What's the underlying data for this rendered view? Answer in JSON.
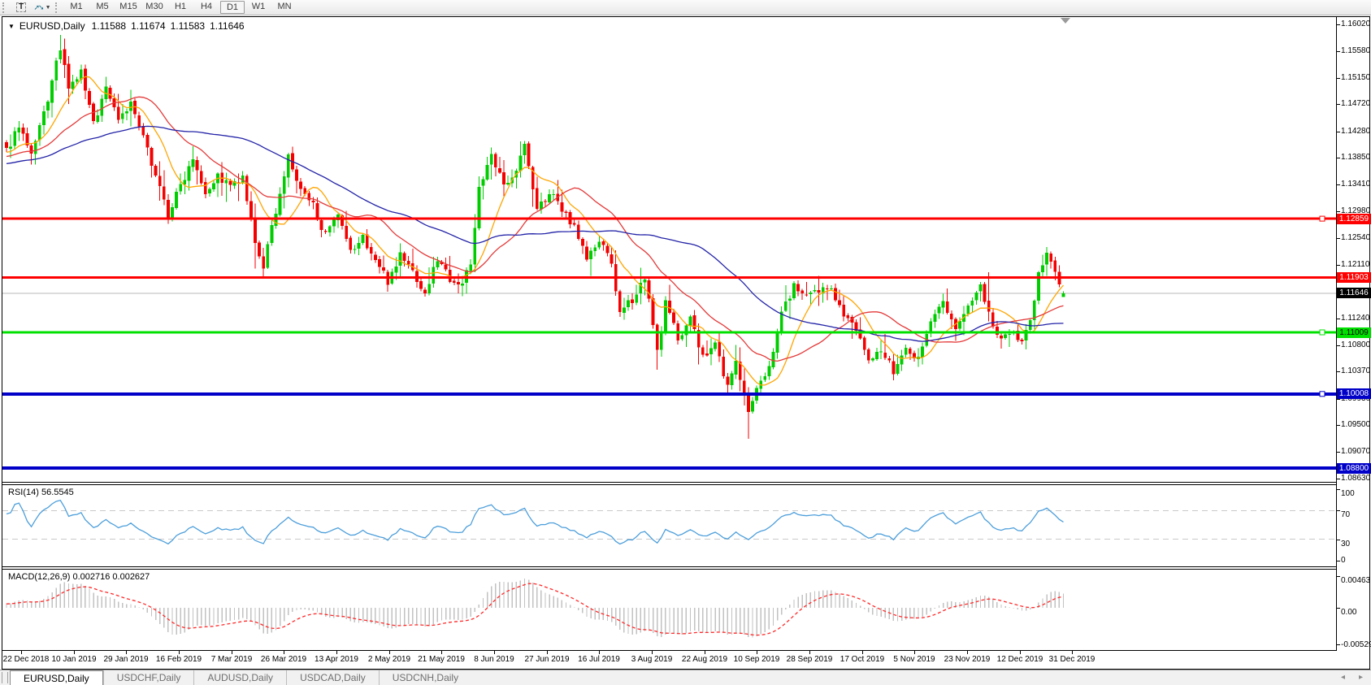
{
  "toolbar": {
    "tools": [
      {
        "name": "text-tool",
        "glyph": "T"
      },
      {
        "name": "arrows-tool",
        "caret": "▼"
      }
    ],
    "timeframes": [
      {
        "label": "M1",
        "active": false
      },
      {
        "label": "M5",
        "active": false
      },
      {
        "label": "M15",
        "active": false
      },
      {
        "label": "M30",
        "active": false
      },
      {
        "label": "H1",
        "active": false
      },
      {
        "label": "H4",
        "active": false
      },
      {
        "label": "D1",
        "active": true
      },
      {
        "label": "W1",
        "active": false
      },
      {
        "label": "MN",
        "active": false
      }
    ]
  },
  "chart": {
    "title": {
      "collapse_icon": "▼",
      "symbol": "EURUSD,Daily",
      "open": "1.11588",
      "high": "1.11674",
      "low": "1.11583",
      "close": "1.11646"
    }
  },
  "chart_data": {
    "type": "candlestick",
    "symbol": "EURUSD",
    "timeframe": "Daily",
    "candle_colors": {
      "up": "#00CD00",
      "down": "#F40000"
    },
    "price_axis": {
      "top_tick": 1.1602,
      "top_tick_y": 30,
      "bottom_tick": 1.0863,
      "bottom_tick_y": 589,
      "ticks": [
        "1.16020",
        "1.15580",
        "1.15150",
        "1.14720",
        "1.14280",
        "1.13850",
        "1.13410",
        "1.12980",
        "1.12540",
        "1.12110",
        "1.11240",
        "1.10800",
        "1.10370",
        "1.09930",
        "1.09500",
        "1.09070",
        "1.08630"
      ]
    },
    "x_axis": {
      "labels": [
        "22 Dec 2018",
        "10 Jan 2019",
        "29 Jan 2019",
        "16 Feb 2019",
        "7 Mar 2019",
        "26 Mar 2019",
        "13 Apr 2019",
        "2 May 2019",
        "21 May 2019",
        "8 Jun 2019",
        "27 Jun 2019",
        "16 Jul 2019",
        "3 Aug 2019",
        "22 Aug 2019",
        "10 Sep 2019",
        "28 Sep 2019",
        "17 Oct 2019",
        "5 Nov 2019",
        "23 Nov 2019",
        "12 Dec 2019",
        "31 Dec 2019"
      ],
      "total_candles": 256
    },
    "close_anchors": [
      [
        0,
        1.1395
      ],
      [
        3,
        1.144
      ],
      [
        6,
        1.1385
      ],
      [
        10,
        1.148
      ],
      [
        13,
        1.1565
      ],
      [
        15,
        1.1495
      ],
      [
        18,
        1.1525
      ],
      [
        21,
        1.144
      ],
      [
        24,
        1.15
      ],
      [
        27,
        1.145
      ],
      [
        30,
        1.1472
      ],
      [
        33,
        1.1415
      ],
      [
        36,
        1.136
      ],
      [
        39,
        1.1292
      ],
      [
        42,
        1.134
      ],
      [
        45,
        1.1388
      ],
      [
        48,
        1.133
      ],
      [
        51,
        1.1355
      ],
      [
        54,
        1.1338
      ],
      [
        57,
        1.135
      ],
      [
        60,
        1.1242
      ],
      [
        62,
        1.1208
      ],
      [
        65,
        1.13
      ],
      [
        68,
        1.1385
      ],
      [
        71,
        1.133
      ],
      [
        74,
        1.1308
      ],
      [
        77,
        1.1258
      ],
      [
        80,
        1.1288
      ],
      [
        83,
        1.123
      ],
      [
        86,
        1.1255
      ],
      [
        89,
        1.1218
      ],
      [
        92,
        1.1185
      ],
      [
        95,
        1.1228
      ],
      [
        98,
        1.12
      ],
      [
        101,
        1.1162
      ],
      [
        104,
        1.1222
      ],
      [
        107,
        1.119
      ],
      [
        110,
        1.118
      ],
      [
        112,
        1.1212
      ],
      [
        114,
        1.1338
      ],
      [
        117,
        1.1385
      ],
      [
        120,
        1.134
      ],
      [
        123,
        1.1368
      ],
      [
        125,
        1.1405
      ],
      [
        128,
        1.13
      ],
      [
        131,
        1.1328
      ],
      [
        134,
        1.13
      ],
      [
        137,
        1.1275
      ],
      [
        140,
        1.1222
      ],
      [
        143,
        1.1248
      ],
      [
        146,
        1.1215
      ],
      [
        148,
        1.1128
      ],
      [
        151,
        1.1155
      ],
      [
        154,
        1.1192
      ],
      [
        157,
        1.1068
      ],
      [
        159,
        1.1148
      ],
      [
        162,
        1.1092
      ],
      [
        165,
        1.1125
      ],
      [
        168,
        1.1058
      ],
      [
        171,
        1.1082
      ],
      [
        174,
        1.1012
      ],
      [
        176,
        1.1055
      ],
      [
        179,
        1.0968
      ],
      [
        181,
        1.1005
      ],
      [
        184,
        1.1048
      ],
      [
        187,
        1.1132
      ],
      [
        190,
        1.1178
      ],
      [
        193,
        1.1155
      ],
      [
        196,
        1.1168
      ],
      [
        199,
        1.1175
      ],
      [
        202,
        1.113
      ],
      [
        205,
        1.1102
      ],
      [
        208,
        1.1058
      ],
      [
        211,
        1.1072
      ],
      [
        214,
        1.1038
      ],
      [
        217,
        1.1078
      ],
      [
        220,
        1.1058
      ],
      [
        223,
        1.1118
      ],
      [
        226,
        1.115
      ],
      [
        229,
        1.111
      ],
      [
        232,
        1.114
      ],
      [
        235,
        1.1172
      ],
      [
        237,
        1.113
      ],
      [
        240,
        1.1086
      ],
      [
        243,
        1.1106
      ],
      [
        245,
        1.1082
      ],
      [
        247,
        1.112
      ],
      [
        249,
        1.1198
      ],
      [
        251,
        1.1232
      ],
      [
        253,
        1.12
      ],
      [
        254,
        1.1172
      ],
      [
        255,
        1.11646
      ]
    ],
    "extremes": {
      "highs": [
        [
          13,
          1.1585
        ],
        [
          237,
          1.1199
        ],
        [
          251,
          1.124
        ]
      ],
      "lows": [
        [
          179,
          1.0928
        ],
        [
          157,
          1.104
        ],
        [
          60,
          1.1205
        ]
      ]
    },
    "moving_averages": [
      {
        "period": 10,
        "color": "#FFA500"
      },
      {
        "period": 25,
        "color": "#E43A3A"
      },
      {
        "period": 55,
        "color": "#2323A8"
      }
    ],
    "horizontal_lines": [
      {
        "price": 1.12859,
        "label": "1.12859",
        "color": "#FF0000",
        "width": 3,
        "label_bg": "#FF0000",
        "label_fg": "#FFFFFF",
        "handle": true
      },
      {
        "price": 1.11903,
        "label": "1.11903",
        "color": "#FF0000",
        "width": 3,
        "label_bg": "#FF0000",
        "label_fg": "#FFFFFF",
        "handle": false
      },
      {
        "price": 1.11009,
        "label": "1.11009",
        "color": "#00E000",
        "width": 3,
        "label_bg": "#00E000",
        "label_fg": "#000000",
        "handle": true
      },
      {
        "price": 1.10008,
        "label": "1.10008",
        "color": "#0000C8",
        "width": 4,
        "label_bg": "#0000C8",
        "label_fg": "#FFFFFF",
        "handle": true
      },
      {
        "price": 1.088,
        "label": "1.08800",
        "color": "#0000C8",
        "width": 4,
        "label_bg": "#0000C8",
        "label_fg": "#FFFFFF",
        "handle": false
      }
    ],
    "current_price": {
      "value": 1.11646,
      "label": "1.11646",
      "line_color": "#B8B8B8",
      "label_bg": "#000000",
      "label_fg": "#FFFFFF"
    },
    "indicators": {
      "rsi": {
        "label": "RSI(14) 56.5545",
        "period": 14,
        "current": 56.5545,
        "color": "#4D9FDB",
        "levels": [
          70,
          30
        ],
        "scale": [
          "100",
          "70",
          "30",
          "0"
        ]
      },
      "macd": {
        "label": "MACD(12,26,9) 0.002716 0.002627",
        "fast": 12,
        "slow": 26,
        "signal_period": 9,
        "current_macd": 0.002716,
        "current_signal": 0.002627,
        "histogram_color": "#C2C2C2",
        "signal_color": "#FF2A2A",
        "scale": [
          {
            "label": "0.00463",
            "value": 0.00463
          },
          {
            "label": "0.00",
            "value": 0
          },
          {
            "label": "-0.005299",
            "value": -0.005299
          }
        ]
      }
    }
  },
  "tabs": {
    "items": [
      {
        "label": "EURUSD,Daily",
        "active": true
      },
      {
        "label": "USDCHF,Daily",
        "active": false
      },
      {
        "label": "AUDUSD,Daily",
        "active": false
      },
      {
        "label": "USDCAD,Daily",
        "active": false
      },
      {
        "label": "USDCNH,Daily",
        "active": false
      }
    ],
    "scroll_left": "◂",
    "scroll_right": "▸"
  }
}
